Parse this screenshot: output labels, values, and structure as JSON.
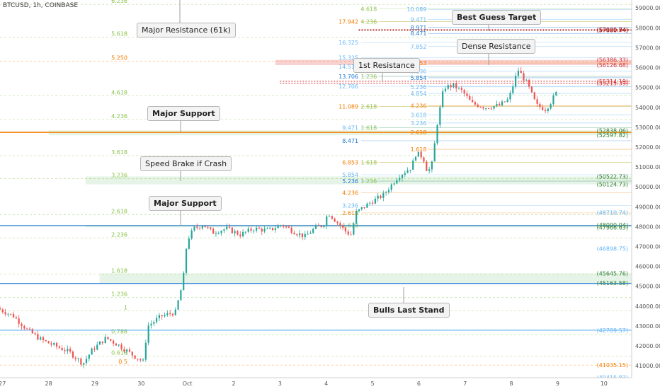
{
  "chart_title": "BTCUSD, 1h, COINBASE",
  "chart_data": {
    "type": "candlestick",
    "symbol": "BTCUSD",
    "timeframe": "1h",
    "exchange": "COINBASE",
    "x_tick_labels": [
      {
        "day": 27,
        "label": "27"
      },
      {
        "day": 28,
        "label": "28"
      },
      {
        "day": 29,
        "label": "29"
      },
      {
        "day": 30,
        "label": "30"
      },
      {
        "day": 31,
        "label": "Oct"
      },
      {
        "day": 32,
        "label": "2"
      },
      {
        "day": 33,
        "label": "3"
      },
      {
        "day": 34,
        "label": "4"
      },
      {
        "day": 35,
        "label": "5"
      },
      {
        "day": 36,
        "label": "6"
      },
      {
        "day": 37,
        "label": "7"
      },
      {
        "day": 38,
        "label": "8"
      },
      {
        "day": 39,
        "label": "9"
      },
      {
        "day": 40,
        "label": "10"
      }
    ],
    "y_tick_labels": [
      "59000.00",
      "58000.00",
      "57000.00",
      "56000.00",
      "55000.00",
      "54000.00",
      "53000.00",
      "52000.00",
      "51000.00",
      "50000.00",
      "49000.00",
      "48000.00",
      "47000.00",
      "46000.00",
      "45000.00",
      "44000.00",
      "43000.00",
      "42000.00",
      "41000.00"
    ],
    "y_range": [
      40400,
      59400
    ],
    "x_range_days": [
      26.95,
      40.6
    ],
    "price_path": [
      [
        26.95,
        43900
      ],
      [
        27.3,
        43500
      ],
      [
        27.6,
        42800
      ],
      [
        27.9,
        42300
      ],
      [
        28.2,
        42000
      ],
      [
        28.5,
        41700
      ],
      [
        28.8,
        41100
      ],
      [
        29.0,
        41800
      ],
      [
        29.3,
        42400
      ],
      [
        29.6,
        42000
      ],
      [
        29.9,
        41500
      ],
      [
        30.1,
        41200
      ],
      [
        30.2,
        43000
      ],
      [
        30.5,
        43500
      ],
      [
        30.8,
        43700
      ],
      [
        30.96,
        45200
      ],
      [
        31.05,
        47300
      ],
      [
        31.2,
        47900
      ],
      [
        31.4,
        48100
      ],
      [
        31.6,
        47700
      ],
      [
        31.9,
        47900
      ],
      [
        32.2,
        47600
      ],
      [
        32.5,
        47900
      ],
      [
        32.8,
        47800
      ],
      [
        33.1,
        48100
      ],
      [
        33.4,
        47700
      ],
      [
        33.6,
        47500
      ],
      [
        33.8,
        47900
      ],
      [
        34.0,
        48100
      ],
      [
        34.1,
        48700
      ],
      [
        34.3,
        48200
      ],
      [
        34.5,
        47700
      ],
      [
        34.6,
        47600
      ],
      [
        34.7,
        48700
      ],
      [
        35.0,
        49200
      ],
      [
        35.3,
        49600
      ],
      [
        35.6,
        50500
      ],
      [
        35.9,
        51000
      ],
      [
        36.0,
        51700
      ],
      [
        36.15,
        51500
      ],
      [
        36.25,
        50700
      ],
      [
        36.35,
        51200
      ],
      [
        36.45,
        53100
      ],
      [
        36.6,
        55000
      ],
      [
        36.8,
        55100
      ],
      [
        37.0,
        54800
      ],
      [
        37.2,
        54200
      ],
      [
        37.5,
        54000
      ],
      [
        37.8,
        54100
      ],
      [
        38.0,
        54400
      ],
      [
        38.2,
        55900
      ],
      [
        38.4,
        55200
      ],
      [
        38.6,
        54100
      ],
      [
        38.8,
        53900
      ],
      [
        38.95,
        54400
      ],
      [
        39.0,
        54700
      ]
    ],
    "price_labels": [
      {
        "price": 57909.54,
        "text": "(57909.54)",
        "color": "#d32f2f"
      },
      {
        "price": 57880.74,
        "text": "(57880.74)",
        "color": "#8a0000"
      },
      {
        "price": 56386.33,
        "text": "(56386.33)",
        "color": "#d32f2f"
      },
      {
        "price": 56126.68,
        "text": "(56126.68)",
        "color": "#d32f2f"
      },
      {
        "price": 55314.19,
        "text": "(55314.19)",
        "color": "#d32f2f"
      },
      {
        "price": 55215.39,
        "text": "(55215.39)",
        "color": "#d32f2f"
      },
      {
        "price": 52838.06,
        "text": "(52838.06)",
        "color": "#2e7d32"
      },
      {
        "price": 52597.82,
        "text": "(52597.82)",
        "color": "#2e7d32"
      },
      {
        "price": 50522.73,
        "text": "(50522.73)",
        "color": "#2e7d32"
      },
      {
        "price": 50124.73,
        "text": "(50124.73)",
        "color": "#2e7d32"
      },
      {
        "price": 48710.74,
        "text": "(48710.74)",
        "color": "#64b5f6"
      },
      {
        "price": 48090.04,
        "text": "(48090.04)",
        "color": "#2e7d32"
      },
      {
        "price": 47966.63,
        "text": "(47966.63)",
        "color": "#2e7d32"
      },
      {
        "price": 46898.75,
        "text": "(46898.75)",
        "color": "#64b5f6"
      },
      {
        "price": 45645.76,
        "text": "(45645.76)",
        "color": "#2e7d32"
      },
      {
        "price": 45163.58,
        "text": "(45163.58)",
        "color": "#2e7d32"
      },
      {
        "price": 42789.57,
        "text": "(42789.57)",
        "color": "#64b5f6"
      },
      {
        "price": 41035.15,
        "text": "(41035.15)",
        "color": "#f57c00"
      },
      {
        "price": 40415.83,
        "text": "(40415.83)",
        "color": "#64b5f6"
      }
    ],
    "zones": [
      {
        "from": 56126.68,
        "to": 56386.33,
        "color": "#ef9a9a",
        "x_start": 32.9
      },
      {
        "from": 52597.82,
        "to": 52838.06,
        "color": "#c8e6c9",
        "x_start": 28.0
      },
      {
        "from": 50124.73,
        "to": 50522.73,
        "color": "#c8e6c9",
        "x_start": 28.8
      },
      {
        "from": 47966.63,
        "to": 48090.04,
        "color": "#c8e6c9",
        "x_start": 28.8
      },
      {
        "from": 45163.58,
        "to": 45645.76,
        "color": "#c8e6c9",
        "x_start": 29.1
      }
    ],
    "levels": [
      {
        "price": 52740,
        "color": "#f57c00",
        "width": 1.5,
        "x_start": 26.95
      },
      {
        "price": 48050,
        "color": "#1976d2",
        "width": 1.2,
        "x_start": 26.95
      },
      {
        "price": 45140,
        "color": "#1976d2",
        "width": 1.2,
        "x_start": 26.95
      },
      {
        "price": 42789.57,
        "color": "#42a5f5",
        "width": 1,
        "x_start": 26.95
      },
      {
        "price": 57909.54,
        "color": "#d32f2f",
        "width": 1,
        "dash": "2,2",
        "x_start": 34.7
      },
      {
        "price": 57880.74,
        "color": "#8a0000",
        "width": 1,
        "dash": "2,2",
        "x_start": 34.7
      },
      {
        "price": 55314.19,
        "color": "#d32f2f",
        "width": 1,
        "dash": "2,2",
        "x_start": 33.0
      },
      {
        "price": 55215.39,
        "color": "#d32f2f",
        "width": 1,
        "dash": "2,2",
        "x_start": 33.0
      }
    ],
    "fib_left": [
      {
        "price": 59180,
        "text": "6.236",
        "color": "#8bc34a"
      },
      {
        "price": 57530,
        "text": "5.618",
        "color": "#8bc34a"
      },
      {
        "price": 56330,
        "text": "5.250",
        "color": "#f57c00"
      },
      {
        "price": 54580,
        "text": "4.618",
        "color": "#8bc34a"
      },
      {
        "price": 53390,
        "text": "4.236",
        "color": "#8bc34a"
      },
      {
        "price": 51570,
        "text": "3.618",
        "color": "#8bc34a"
      },
      {
        "price": 50410,
        "text": "3.236",
        "color": "#8bc34a"
      },
      {
        "price": 48600,
        "text": "2.618",
        "color": "#8bc34a"
      },
      {
        "price": 47420,
        "text": "2.236",
        "color": "#8bc34a"
      },
      {
        "price": 45620,
        "text": "1.618",
        "color": "#8bc34a"
      },
      {
        "price": 44440,
        "text": "1.236",
        "color": "#8bc34a"
      },
      {
        "price": 43760,
        "text": "1",
        "color": "#8bc34a"
      },
      {
        "price": 42550,
        "text": "0.786",
        "color": "#8bc34a"
      },
      {
        "price": 41480,
        "text": "0.618",
        "color": "#8bc34a"
      },
      {
        "price": 41035,
        "text": "0.5",
        "color": "#f57c00"
      }
    ],
    "fib_mid": [
      {
        "price": 58960,
        "text": "4.618",
        "color": "#8bc34a",
        "xd": 34.85
      },
      {
        "price": 58310,
        "text": "17.942",
        "color": "#f57c00",
        "xd": 34.45
      },
      {
        "price": 58310,
        "text": "4.236",
        "color": "#8bc34a",
        "xd": 34.85
      },
      {
        "price": 57260,
        "text": "16.325",
        "color": "#64b5f6",
        "xd": 34.45
      },
      {
        "price": 56500,
        "text": "15.325",
        "color": "#64b5f6",
        "xd": 34.45
      },
      {
        "price": 56050,
        "text": "14.515",
        "color": "#64b5f6",
        "xd": 34.45
      },
      {
        "price": 55560,
        "text": "13.706",
        "color": "#1976d2",
        "xd": 34.45
      },
      {
        "price": 55560,
        "text": "1.236",
        "color": "#8bc34a",
        "xd": 34.85
      },
      {
        "price": 55060,
        "text": "12.706",
        "color": "#64b5f6",
        "xd": 34.45
      },
      {
        "price": 54040,
        "text": "11.089",
        "color": "#f57c00",
        "xd": 34.45
      },
      {
        "price": 54040,
        "text": "2.618",
        "color": "#8bc34a",
        "xd": 34.85
      },
      {
        "price": 52980,
        "text": "9.471",
        "color": "#64b5f6",
        "xd": 34.45
      },
      {
        "price": 52980,
        "text": "1.618",
        "color": "#8bc34a",
        "xd": 34.85
      },
      {
        "price": 52320,
        "text": "8.471",
        "color": "#1976d2",
        "xd": 34.45
      },
      {
        "price": 51230,
        "text": "6.853",
        "color": "#f57c00",
        "xd": 34.45
      },
      {
        "price": 51230,
        "text": "1.618",
        "color": "#8bc34a",
        "xd": 34.85
      },
      {
        "price": 50610,
        "text": "5.854",
        "color": "#64b5f6",
        "xd": 34.45
      },
      {
        "price": 50290,
        "text": "5.236",
        "color": "#1976d2",
        "xd": 34.45
      },
      {
        "price": 50290,
        "text": "1.236",
        "color": "#8bc34a",
        "xd": 34.85
      },
      {
        "price": 49710,
        "text": "4.236",
        "color": "#f57c00",
        "xd": 34.45
      },
      {
        "price": 49060,
        "text": "3.236",
        "color": "#64b5f6",
        "xd": 34.45
      },
      {
        "price": 48690,
        "text": "2.618",
        "color": "#f57c00",
        "xd": 34.45
      },
      {
        "price": 48060,
        "text": "1.618",
        "color": "#8bc34a",
        "xd": 34.45
      }
    ],
    "fib_right": [
      {
        "price": 58930,
        "text": "10.089",
        "color": "#64b5f6"
      },
      {
        "price": 58420,
        "text": "9.471",
        "color": "#64b5f6"
      },
      {
        "price": 58020,
        "text": "8.971",
        "color": "#1976d2"
      },
      {
        "price": 57720,
        "text": "8.471",
        "color": "#1976d2"
      },
      {
        "price": 57060,
        "text": "7.852",
        "color": "#64b5f6"
      },
      {
        "price": 56230,
        "text": "6.853",
        "color": "#f57c00"
      },
      {
        "price": 55830,
        "text": "6.236",
        "color": "#64b5f6"
      },
      {
        "price": 55490,
        "text": "5.854",
        "color": "#1976d2"
      },
      {
        "price": 55030,
        "text": "5.236",
        "color": "#64b5f6"
      },
      {
        "price": 54700,
        "text": "4.854",
        "color": "#64b5f6"
      },
      {
        "price": 54080,
        "text": "4.236",
        "color": "#f57c00"
      },
      {
        "price": 53620,
        "text": "3.618",
        "color": "#64b5f6"
      },
      {
        "price": 53210,
        "text": "3.236",
        "color": "#64b5f6"
      },
      {
        "price": 52750,
        "text": "2.618",
        "color": "#f57c00"
      },
      {
        "price": 51890,
        "text": "1.618",
        "color": "#f57c00"
      }
    ]
  },
  "annotations": [
    {
      "text": "Major Resistance (61k)",
      "bold": false,
      "pointer": "up"
    },
    {
      "text": "Best Guess Target",
      "bold": true,
      "pointer": "down"
    },
    {
      "text": "Dense Resistance",
      "bold": false,
      "pointer": "down"
    },
    {
      "text": "1st Resistance",
      "bold": false,
      "pointer": "down"
    },
    {
      "text": "Major Support",
      "bold": true,
      "pointer": "down"
    },
    {
      "text": "Speed Brake if Crash",
      "bold": false,
      "pointer": "down"
    },
    {
      "text": "Major Support",
      "bold": true,
      "pointer": "down"
    },
    {
      "text": "Bulls Last Stand",
      "bold": true,
      "pointer": "up"
    }
  ]
}
